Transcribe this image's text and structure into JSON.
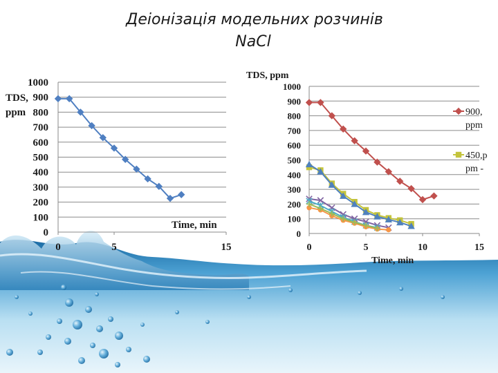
{
  "slide": {
    "title_line1": "Деіонізація модельних розчинів",
    "title_line2": "NaCl"
  },
  "chart_data": [
    {
      "type": "line",
      "title": "",
      "ylabel_lines": [
        "TDS,",
        "ppm"
      ],
      "xlabel": "Time, min",
      "xlim": [
        0,
        15
      ],
      "ylim": [
        0,
        1000
      ],
      "xticks": [
        0,
        5,
        15
      ],
      "yticks": [
        0,
        100,
        200,
        300,
        400,
        500,
        600,
        700,
        800,
        900,
        1000
      ],
      "grid": "horizontal",
      "legend": "none",
      "series": [
        {
          "color": "#4f7fc1",
          "marker": "diamond",
          "x": [
            0,
            1,
            2,
            3,
            4,
            5,
            6,
            7,
            8,
            9,
            10,
            11
          ],
          "y": [
            890,
            890,
            800,
            710,
            630,
            560,
            485,
            420,
            355,
            305,
            225,
            250
          ]
        }
      ]
    },
    {
      "type": "line",
      "title": "",
      "ylabel": "TDS, ppm",
      "xlabel": "Time, min",
      "xlim": [
        0,
        15
      ],
      "ylim": [
        0,
        1000
      ],
      "xticks": [
        0,
        5,
        10,
        15
      ],
      "yticks": [
        0,
        100,
        200,
        300,
        400,
        500,
        600,
        700,
        800,
        900,
        1000
      ],
      "grid": "horizontal",
      "legend": "right",
      "legend_entries": [
        {
          "lines": [
            "900,",
            "ppm"
          ],
          "color": "#c0504d",
          "marker": "diamond"
        },
        {
          "lines": [
            "450,p",
            "pm -"
          ],
          "color": "#c3c33c",
          "marker": "square"
        }
      ],
      "series": [
        {
          "color": "#c0504d",
          "marker": "diamond",
          "x": [
            0,
            1,
            2,
            3,
            4,
            5,
            6,
            7,
            8,
            9,
            10,
            11
          ],
          "y": [
            890,
            890,
            800,
            710,
            630,
            560,
            485,
            420,
            355,
            305,
            230,
            255
          ]
        },
        {
          "color": "#c3c33c",
          "marker": "square",
          "x": [
            0,
            1,
            2,
            3,
            4,
            5,
            6,
            7,
            8,
            9
          ],
          "y": [
            450,
            430,
            340,
            270,
            215,
            160,
            125,
            105,
            90,
            65
          ]
        },
        {
          "color": "#4f81bd",
          "marker": "triangle",
          "x": [
            0,
            1,
            2,
            3,
            4,
            5,
            6,
            7,
            8,
            9
          ],
          "y": [
            470,
            420,
            330,
            255,
            200,
            145,
            115,
            95,
            75,
            50
          ]
        },
        {
          "color": "#8064a2",
          "marker": "x",
          "x": [
            0,
            1,
            2,
            3,
            4,
            5,
            6,
            7
          ],
          "y": [
            235,
            225,
            175,
            130,
            100,
            80,
            55,
            40
          ]
        },
        {
          "color": "#4bacc6",
          "marker": "star",
          "x": [
            0,
            1,
            2,
            3,
            4,
            5,
            6
          ],
          "y": [
            220,
            190,
            150,
            110,
            80,
            55,
            40
          ]
        },
        {
          "color": "#f79646",
          "marker": "circle",
          "x": [
            0,
            1,
            2,
            3,
            4,
            5,
            6,
            7
          ],
          "y": [
            175,
            160,
            120,
            90,
            70,
            45,
            30,
            25
          ]
        },
        {
          "color": "#9bbb59",
          "marker": "plus",
          "x": [
            0,
            1,
            2,
            3,
            4,
            5,
            6
          ],
          "y": [
            200,
            170,
            135,
            100,
            75,
            55,
            35
          ]
        }
      ]
    }
  ],
  "background": {
    "water_dark": "#1d6fa6",
    "water_light": "#bfe3f5",
    "bubble_color": "#2f86c2"
  }
}
